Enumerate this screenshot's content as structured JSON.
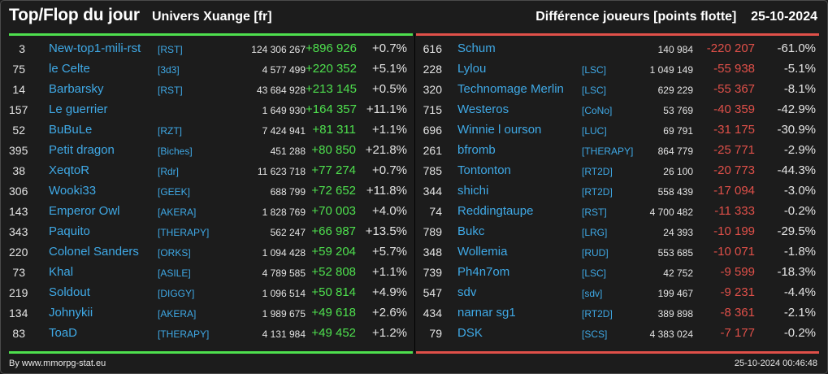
{
  "header": {
    "title": "Top/Flop du jour",
    "universe": "Univers Xuange [fr]",
    "metric": "Différence joueurs [points flotte]",
    "date": "25-10-2024"
  },
  "colors": {
    "up": "#4ee04e",
    "down": "#e05049",
    "name": "#3fa9e6",
    "background": "#1c1c1c"
  },
  "top": [
    {
      "rank": "3",
      "name": "New-top1-mili-rst",
      "tag": "[RST]",
      "points": "124 306 267",
      "diff": "+896 926",
      "pct": "+0.7%"
    },
    {
      "rank": "75",
      "name": "le Celte",
      "tag": "[3d3]",
      "points": "4 577 499",
      "diff": "+220 352",
      "pct": "+5.1%"
    },
    {
      "rank": "14",
      "name": "Barbarsky",
      "tag": "[RST]",
      "points": "43 684 928",
      "diff": "+213 145",
      "pct": "+0.5%"
    },
    {
      "rank": "157",
      "name": "Le guerrier",
      "tag": "",
      "points": "1 649 930",
      "diff": "+164 357",
      "pct": "+11.1%"
    },
    {
      "rank": "52",
      "name": "BuBuLe",
      "tag": "[RZT]",
      "points": "7 424 941",
      "diff": "+81 311",
      "pct": "+1.1%"
    },
    {
      "rank": "395",
      "name": "Petit dragon",
      "tag": "[Biches]",
      "points": "451 288",
      "diff": "+80 850",
      "pct": "+21.8%"
    },
    {
      "rank": "38",
      "name": "XeqtoR",
      "tag": "[Rdr]",
      "points": "11 623 718",
      "diff": "+77 274",
      "pct": "+0.7%"
    },
    {
      "rank": "306",
      "name": "Wooki33",
      "tag": "[GEEK]",
      "points": "688 799",
      "diff": "+72 652",
      "pct": "+11.8%"
    },
    {
      "rank": "143",
      "name": "Emperor Owl",
      "tag": "[AKERA]",
      "points": "1 828 769",
      "diff": "+70 003",
      "pct": "+4.0%"
    },
    {
      "rank": "343",
      "name": "Paquito",
      "tag": "[THERAPY]",
      "points": "562 247",
      "diff": "+66 987",
      "pct": "+13.5%"
    },
    {
      "rank": "220",
      "name": "Colonel Sanders",
      "tag": "[ORKS]",
      "points": "1 094 428",
      "diff": "+59 204",
      "pct": "+5.7%"
    },
    {
      "rank": "73",
      "name": "Khal",
      "tag": "[ASILE]",
      "points": "4 789 585",
      "diff": "+52 808",
      "pct": "+1.1%"
    },
    {
      "rank": "219",
      "name": "Soldout",
      "tag": "[DIGGY]",
      "points": "1 096 514",
      "diff": "+50 814",
      "pct": "+4.9%"
    },
    {
      "rank": "134",
      "name": "Johnykii",
      "tag": "[AKERA]",
      "points": "1 989 675",
      "diff": "+49 618",
      "pct": "+2.6%"
    },
    {
      "rank": "83",
      "name": "ToaD",
      "tag": "[THERAPY]",
      "points": "4 131 984",
      "diff": "+49 452",
      "pct": "+1.2%"
    }
  ],
  "flop": [
    {
      "rank": "616",
      "name": "Schum",
      "tag": "",
      "points": "140 984",
      "diff": "-220 207",
      "pct": "-61.0%"
    },
    {
      "rank": "228",
      "name": "Lylou",
      "tag": "[LSC]",
      "points": "1 049 149",
      "diff": "-55 938",
      "pct": "-5.1%"
    },
    {
      "rank": "320",
      "name": "Technomage Merlin",
      "tag": "[LSC]",
      "points": "629 229",
      "diff": "-55 367",
      "pct": "-8.1%"
    },
    {
      "rank": "715",
      "name": "Westeros",
      "tag": "[CoNo]",
      "points": "53 769",
      "diff": "-40 359",
      "pct": "-42.9%"
    },
    {
      "rank": "696",
      "name": "Winnie l ourson",
      "tag": "[LUC]",
      "points": "69 791",
      "diff": "-31 175",
      "pct": "-30.9%"
    },
    {
      "rank": "261",
      "name": "bfromb",
      "tag": "[THERAPY]",
      "points": "864 779",
      "diff": "-25 771",
      "pct": "-2.9%"
    },
    {
      "rank": "785",
      "name": "Tontonton",
      "tag": "[RT2D]",
      "points": "26 100",
      "diff": "-20 773",
      "pct": "-44.3%"
    },
    {
      "rank": "344",
      "name": "shichi",
      "tag": "[RT2D]",
      "points": "558 439",
      "diff": "-17 094",
      "pct": "-3.0%"
    },
    {
      "rank": "74",
      "name": "Reddingtaupe",
      "tag": "[RST]",
      "points": "4 700 482",
      "diff": "-11 333",
      "pct": "-0.2%"
    },
    {
      "rank": "789",
      "name": "Bukc",
      "tag": "[LRG]",
      "points": "24 393",
      "diff": "-10 199",
      "pct": "-29.5%"
    },
    {
      "rank": "348",
      "name": "Wollemia",
      "tag": "[RUD]",
      "points": "553 685",
      "diff": "-10 071",
      "pct": "-1.8%"
    },
    {
      "rank": "739",
      "name": "Ph4n7om",
      "tag": "[LSC]",
      "points": "42 752",
      "diff": "-9 599",
      "pct": "-18.3%"
    },
    {
      "rank": "547",
      "name": "sdv",
      "tag": "[sdv]",
      "points": "199 467",
      "diff": "-9 231",
      "pct": "-4.4%"
    },
    {
      "rank": "434",
      "name": "narnar sg1",
      "tag": "[RT2D]",
      "points": "389 898",
      "diff": "-8 361",
      "pct": "-2.1%"
    },
    {
      "rank": "79",
      "name": "DSK",
      "tag": "[SCS]",
      "points": "4 383 024",
      "diff": "-7 177",
      "pct": "-0.2%"
    }
  ],
  "footer": {
    "source": "By www.mmorpg-stat.eu",
    "timestamp": "25-10-2024 00:46:48"
  }
}
